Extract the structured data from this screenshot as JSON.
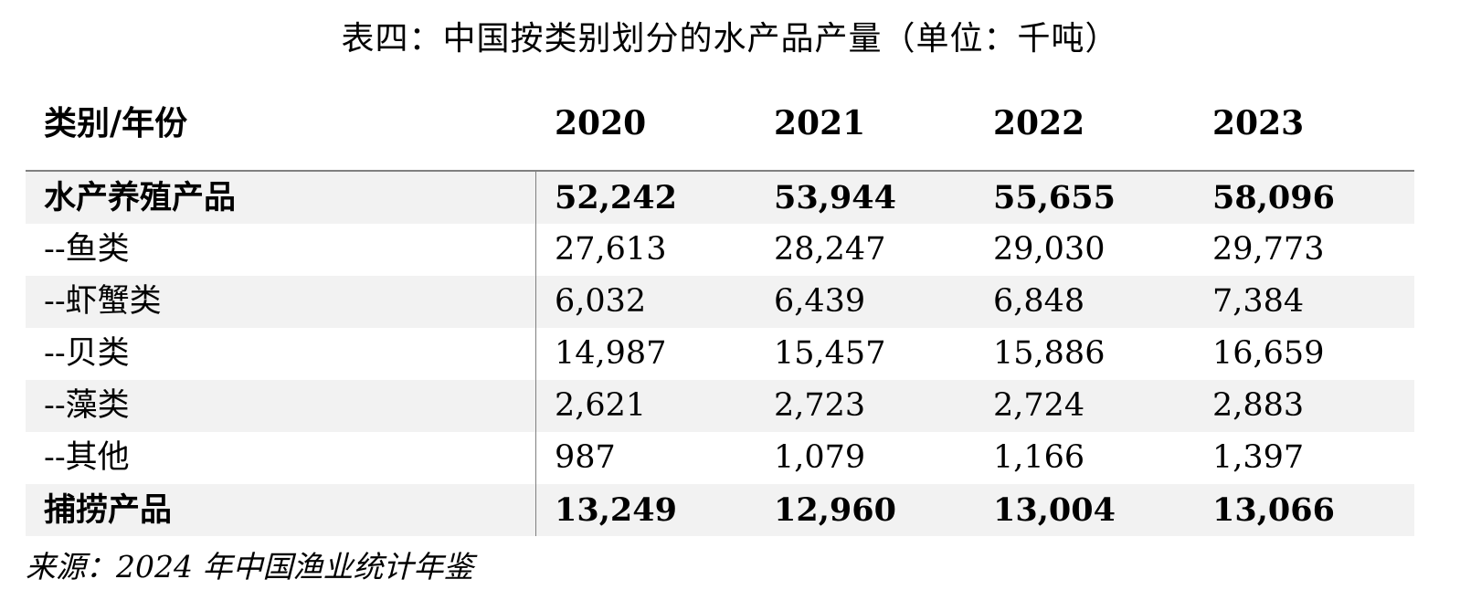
{
  "title": "表四：中国按类别划分的水产品产量（单位：千吨）",
  "columns": [
    "类别/年份",
    "2020",
    "2021",
    "2022",
    "2023"
  ],
  "rows": [
    {
      "label": "水产养殖产品",
      "values": [
        "52,242",
        "53,944",
        "55,655",
        "58,096"
      ],
      "bold": true,
      "shaded": true
    },
    {
      "label": "--鱼类",
      "values": [
        "27,613",
        "28,247",
        "29,030",
        "29,773"
      ],
      "bold": false,
      "shaded": false
    },
    {
      "label": "--虾蟹类",
      "values": [
        "6,032",
        "6,439",
        "6,848",
        "7,384"
      ],
      "bold": false,
      "shaded": true
    },
    {
      "label": "--贝类",
      "values": [
        "14,987",
        "15,457",
        "15,886",
        "16,659"
      ],
      "bold": false,
      "shaded": false
    },
    {
      "label": "--藻类",
      "values": [
        "2,621",
        "2,723",
        "2,724",
        "2,883"
      ],
      "bold": false,
      "shaded": true
    },
    {
      "label": "--其他",
      "values": [
        "987",
        "1,079",
        "1,166",
        "1,397"
      ],
      "bold": false,
      "shaded": false
    },
    {
      "label": "捕捞产品",
      "values": [
        "13,249",
        "12,960",
        "13,004",
        "13,066"
      ],
      "bold": true,
      "shaded": true
    }
  ],
  "source": "来源：2024 年中国渔业统计年鉴"
}
